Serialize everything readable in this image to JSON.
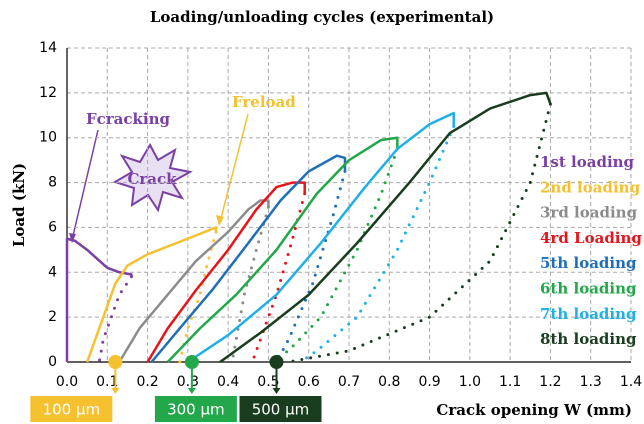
{
  "chart_data": {
    "type": "line",
    "title": "Loading/unloading cycles (experimental)",
    "x_label": "Crack opening W (mm)",
    "y_label": "Load (kN)",
    "xlim": [
      0,
      1.4
    ],
    "xticks": [
      {
        "value": 0,
        "label": "0.0"
      },
      0.1,
      0.2,
      0.3,
      0.4,
      0.5,
      0.6,
      0.7,
      0.8,
      0.9,
      {
        "value": 1,
        "label": "1.0"
      },
      1.1,
      1.2,
      1.3,
      1.4
    ],
    "ylim": [
      0,
      14
    ],
    "yticks": [
      0,
      2,
      4,
      6,
      8,
      10,
      12,
      14
    ],
    "grid": true,
    "series": [
      {
        "name": "1st loading",
        "color": "#7b3fa6",
        "x": [
          0,
          0,
          0.02,
          0.05,
          0.1,
          0.13,
          0.16,
          0.16
        ],
        "values": [
          0,
          5.5,
          5.4,
          5.0,
          4.2,
          4.0,
          3.9,
          3.8
        ],
        "unloading": {
          "x": [
            0.16,
            0.13,
            0.11,
            0.09,
            0.08
          ],
          "values": [
            3.8,
            3.0,
            2.0,
            1.0,
            0
          ]
        }
      },
      {
        "name": "2nd loading",
        "color": "#f5c12e",
        "x": [
          0.05,
          0.09,
          0.12,
          0.15,
          0.2,
          0.3,
          0.37,
          0.37
        ],
        "values": [
          0,
          2,
          3.5,
          4.3,
          4.8,
          5.5,
          6.0,
          5.8
        ],
        "unloading": {
          "x": [
            0.37,
            0.35,
            0.33,
            0.3,
            0.28
          ],
          "values": [
            5.8,
            4.5,
            3.0,
            1.5,
            0
          ]
        }
      },
      {
        "name": "3rd loading",
        "color": "#8c8c8c",
        "x": [
          0.13,
          0.18,
          0.25,
          0.32,
          0.4,
          0.45,
          0.48,
          0.5,
          0.5
        ],
        "values": [
          0,
          1.5,
          3,
          4.5,
          5.8,
          6.8,
          7.2,
          7.2,
          6.9
        ],
        "unloading": {
          "x": [
            0.5,
            0.47,
            0.44,
            0.42,
            0.41
          ],
          "values": [
            6.9,
            5,
            3,
            1,
            0
          ]
        }
      },
      {
        "name": "4rd Loading",
        "color": "#e8141c",
        "x": [
          0.2,
          0.25,
          0.32,
          0.4,
          0.47,
          0.52,
          0.56,
          0.59,
          0.59
        ],
        "values": [
          0,
          1.5,
          3.2,
          5,
          6.8,
          7.8,
          8.0,
          8.0,
          7.5
        ],
        "unloading": {
          "x": [
            0.59,
            0.56,
            0.52,
            0.48,
            0.46
          ],
          "values": [
            7.5,
            5.5,
            3,
            1,
            0
          ]
        }
      },
      {
        "name": "5th loading",
        "color": "#1f6fb8",
        "x": [
          0.21,
          0.28,
          0.36,
          0.45,
          0.53,
          0.6,
          0.67,
          0.69,
          0.69
        ],
        "values": [
          0,
          1.5,
          3.2,
          5.3,
          7.2,
          8.5,
          9.2,
          9.1,
          8.5
        ],
        "unloading": {
          "x": [
            0.69,
            0.66,
            0.61,
            0.55,
            0.52
          ],
          "values": [
            8.5,
            6.5,
            3.5,
            1,
            0
          ]
        }
      },
      {
        "name": "6th loading",
        "color": "#22a84a",
        "x": [
          0.25,
          0.33,
          0.42,
          0.52,
          0.62,
          0.7,
          0.78,
          0.82,
          0.82
        ],
        "values": [
          0,
          1.5,
          3,
          5,
          7.5,
          9,
          9.9,
          10,
          9.5
        ],
        "unloading": {
          "x": [
            0.82,
            0.78,
            0.72,
            0.63,
            0.55,
            0.5
          ],
          "values": [
            9.5,
            7.5,
            5,
            2,
            0.5,
            0
          ]
        }
      },
      {
        "name": "7th loading",
        "color": "#1fb0e8",
        "x": [
          0.3,
          0.4,
          0.52,
          0.63,
          0.74,
          0.82,
          0.9,
          0.96,
          0.96
        ],
        "values": [
          0,
          1.2,
          3,
          5.3,
          7.8,
          9.5,
          10.6,
          11.1,
          10.5
        ],
        "unloading": {
          "x": [
            0.96,
            0.9,
            0.82,
            0.72,
            0.62,
            0.58
          ],
          "values": [
            10.5,
            8,
            5,
            2,
            0.5,
            0
          ]
        }
      },
      {
        "name": "8th loading",
        "color": "#1a3d1f",
        "x": [
          0.38,
          0.48,
          0.6,
          0.72,
          0.85,
          0.95,
          1.05,
          1.15,
          1.19,
          1.2
        ],
        "values": [
          0,
          1.3,
          3,
          5.3,
          8,
          10.2,
          11.3,
          11.9,
          12,
          11.5
        ],
        "unloading": {
          "x": [
            1.2,
            1.15,
            1.05,
            0.9,
            0.7,
            0.55
          ],
          "values": [
            11.5,
            8,
            4.5,
            2,
            0.5,
            0
          ]
        }
      }
    ],
    "annotations": {
      "fcracking": "Fcracking",
      "crack": "Crack",
      "freload": "Freload"
    },
    "markers": [
      {
        "x": 0.12,
        "label": "100 µm",
        "color": "#f5c12e"
      },
      {
        "x": 0.31,
        "label": "300 µm",
        "color": "#22a84a"
      },
      {
        "x": 0.52,
        "label": "500 µm",
        "color": "#1a3d1f"
      }
    ]
  }
}
